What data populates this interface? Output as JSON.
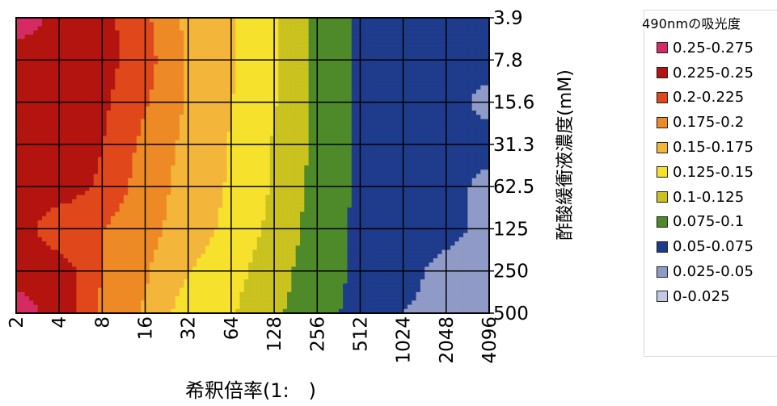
{
  "chart_data": {
    "type": "contour",
    "title": "",
    "xlabel": "希釈倍率(1:　)",
    "ylabel": "酢酸緩衝液濃度(mM)",
    "x_categories": [
      "2",
      "4",
      "8",
      "16",
      "32",
      "64",
      "128",
      "256",
      "512",
      "1024",
      "2048",
      "4096"
    ],
    "y_categories": [
      "3.9",
      "7.8",
      "15.6",
      "31.3",
      "62.5",
      "125",
      "250",
      "500"
    ],
    "y_axis_position": "right",
    "grid": true,
    "legend_title": "490nmの吸光度",
    "legend_position": "right",
    "bands": [
      {
        "label": "0.25-0.275",
        "lower": 0.25,
        "upper": 0.275,
        "color": "#d62a63"
      },
      {
        "label": "0.225-0.25",
        "lower": 0.225,
        "upper": 0.25,
        "color": "#b3140f"
      },
      {
        "label": "0.2-0.225",
        "lower": 0.2,
        "upper": 0.225,
        "color": "#e0481c"
      },
      {
        "label": "0.175-0.2",
        "lower": 0.175,
        "upper": 0.2,
        "color": "#ee8a25"
      },
      {
        "label": "0.15-0.175",
        "lower": 0.15,
        "upper": 0.175,
        "color": "#f4b63a"
      },
      {
        "label": "0.125-0.15",
        "lower": 0.125,
        "upper": 0.15,
        "color": "#f6e12c"
      },
      {
        "label": "0.1-0.125",
        "lower": 0.1,
        "upper": 0.125,
        "color": "#c9c21f"
      },
      {
        "label": "0.075-0.1",
        "lower": 0.075,
        "upper": 0.1,
        "color": "#4f8a2a"
      },
      {
        "label": "0.05-0.075",
        "lower": 0.05,
        "upper": 0.075,
        "color": "#1f3b8c"
      },
      {
        "label": "0.025-0.05",
        "lower": 0.025,
        "upper": 0.05,
        "color": "#8f9bc6"
      },
      {
        "label": "0-0.025",
        "lower": 0,
        "upper": 0.025,
        "color": "#c4c9e3"
      }
    ],
    "z": [
      [
        0.26,
        0.245,
        0.235,
        0.205,
        0.168,
        0.152,
        0.127,
        0.094,
        0.07,
        0.062,
        0.062,
        0.062
      ],
      [
        0.242,
        0.242,
        0.235,
        0.21,
        0.172,
        0.152,
        0.128,
        0.094,
        0.07,
        0.062,
        0.062,
        0.062
      ],
      [
        0.242,
        0.242,
        0.23,
        0.203,
        0.172,
        0.151,
        0.127,
        0.094,
        0.07,
        0.062,
        0.062,
        0.04
      ],
      [
        0.242,
        0.242,
        0.226,
        0.193,
        0.168,
        0.148,
        0.123,
        0.093,
        0.07,
        0.062,
        0.062,
        0.062
      ],
      [
        0.242,
        0.242,
        0.22,
        0.187,
        0.166,
        0.147,
        0.122,
        0.092,
        0.07,
        0.062,
        0.062,
        0.04
      ],
      [
        0.242,
        0.205,
        0.2,
        0.183,
        0.164,
        0.143,
        0.118,
        0.088,
        0.07,
        0.062,
        0.06,
        0.04
      ],
      [
        0.242,
        0.242,
        0.2,
        0.178,
        0.151,
        0.134,
        0.111,
        0.086,
        0.07,
        0.06,
        0.04,
        0.04
      ],
      [
        0.26,
        0.242,
        0.195,
        0.172,
        0.137,
        0.128,
        0.105,
        0.083,
        0.068,
        0.05,
        0.04,
        0.04
      ]
    ]
  }
}
